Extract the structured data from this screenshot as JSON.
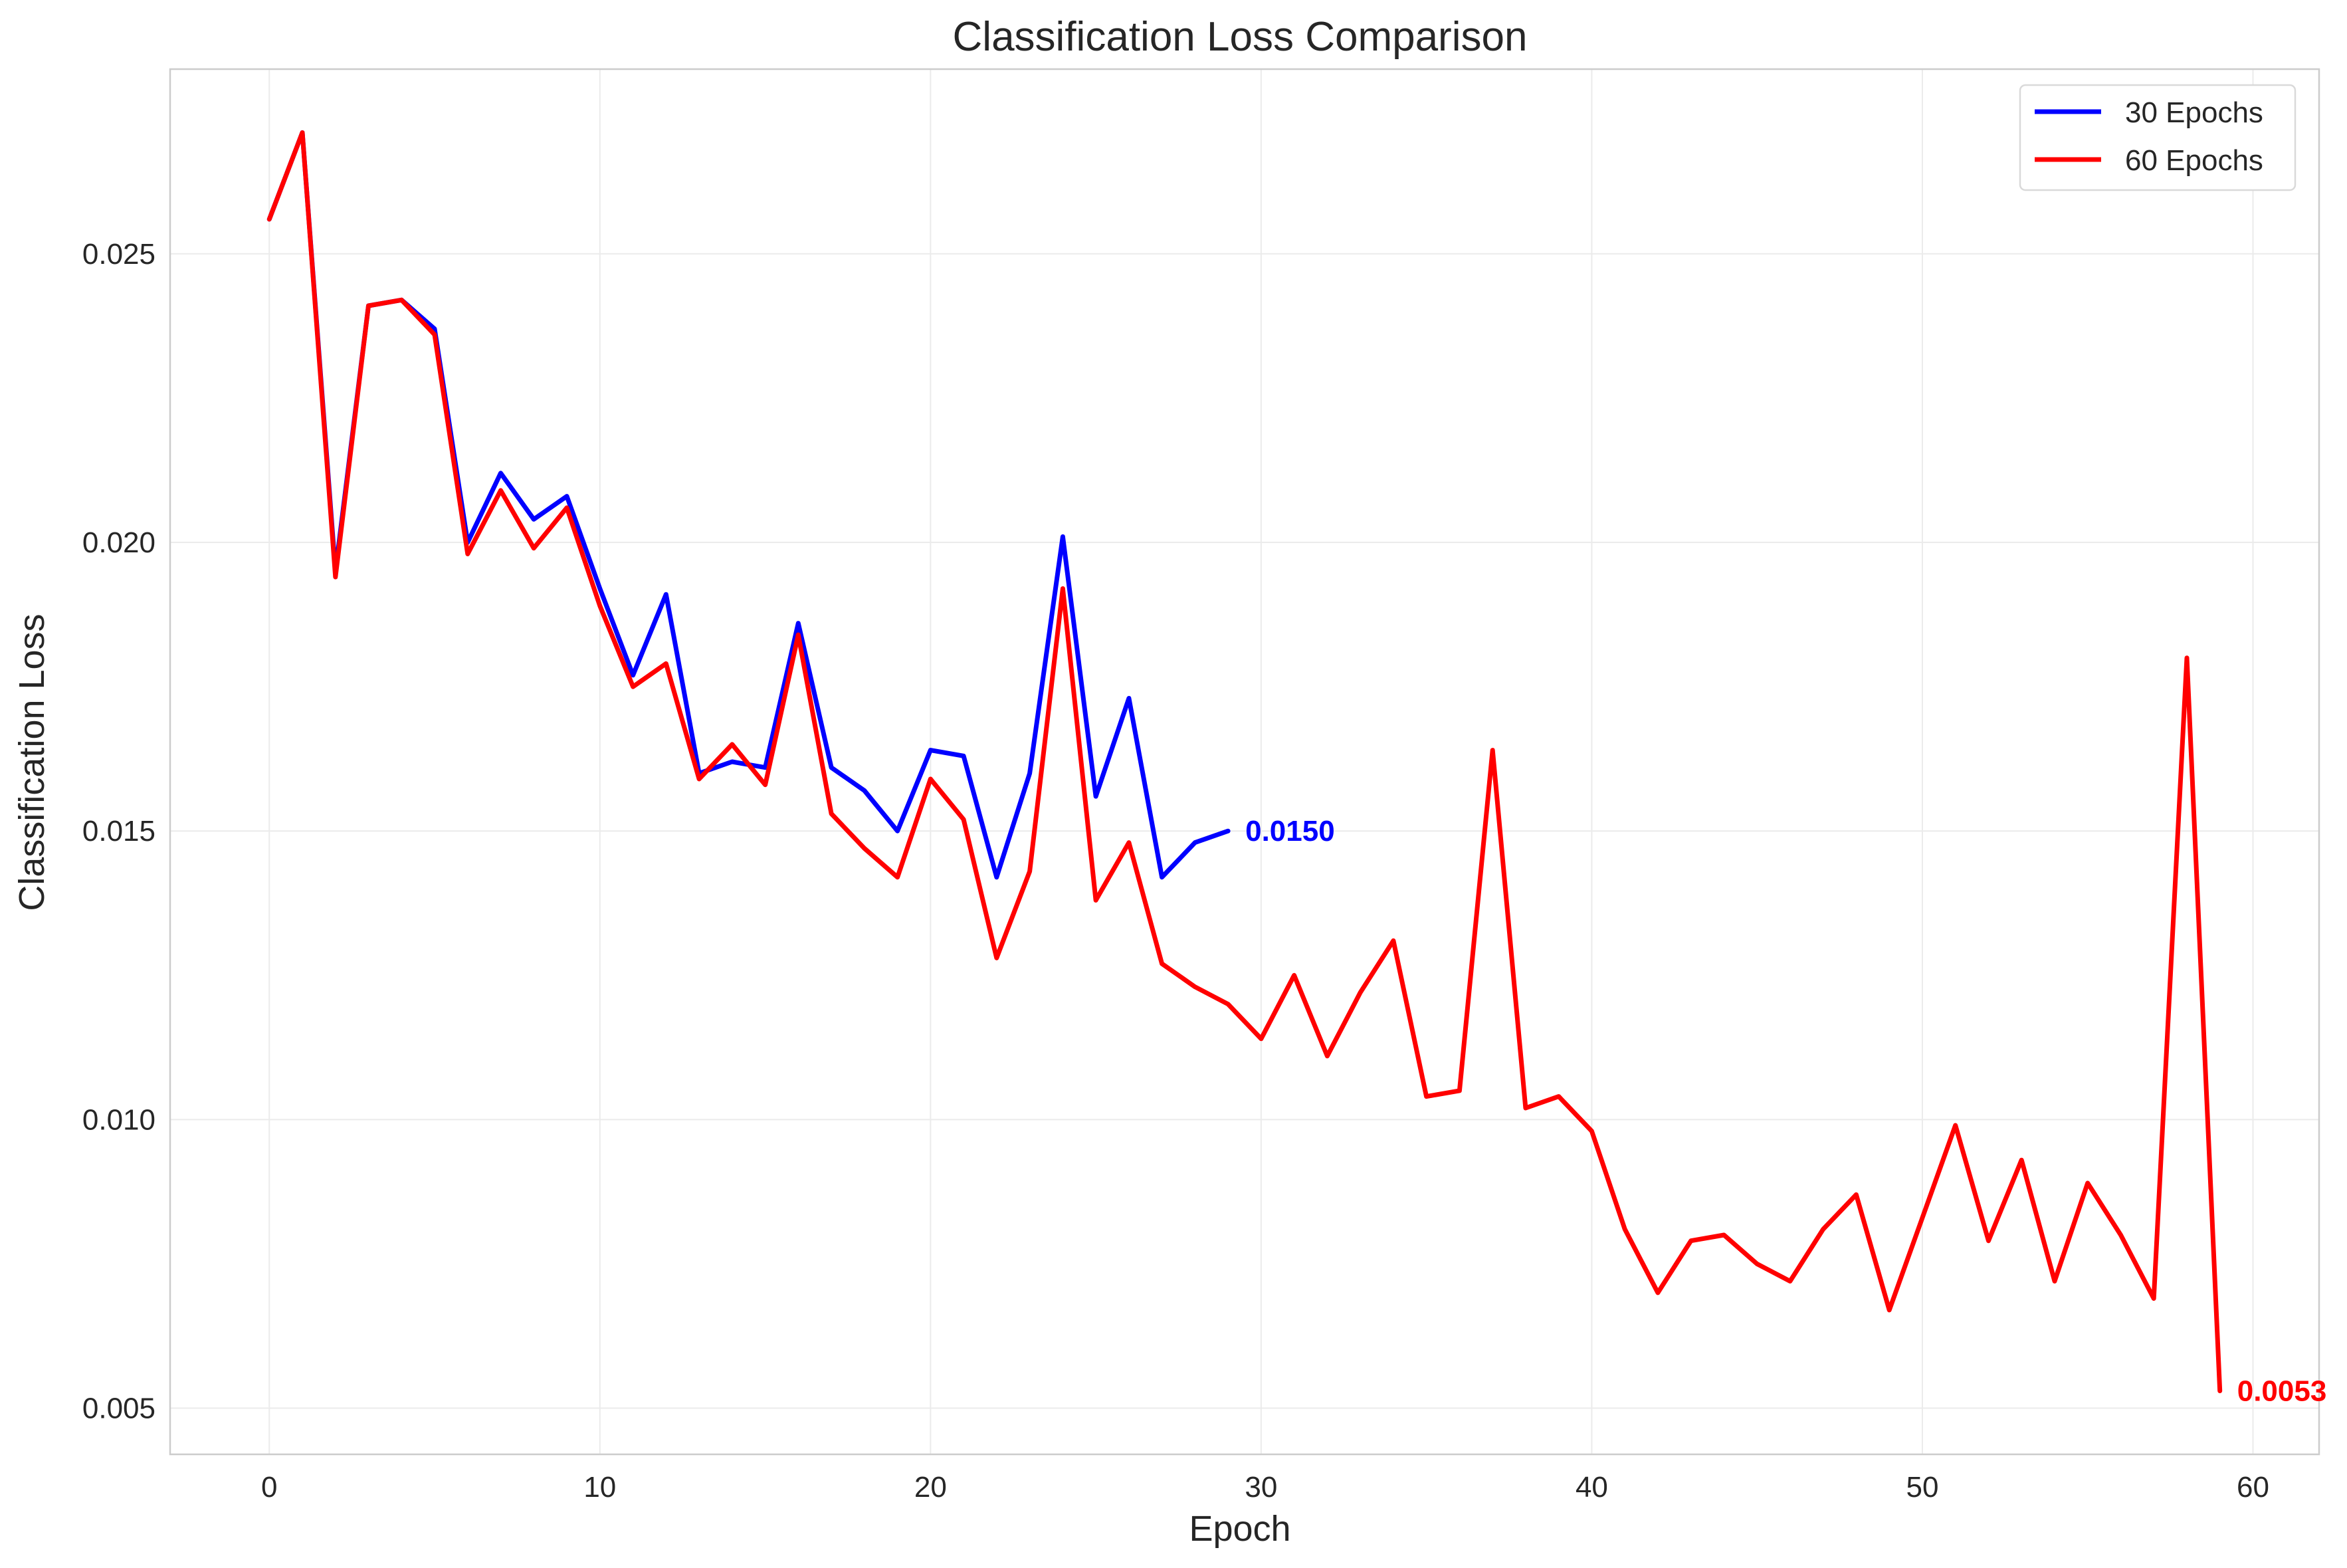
{
  "chart_data": {
    "type": "line",
    "title": "Classification Loss Comparison",
    "xlabel": "Epoch",
    "ylabel": "Classification Loss",
    "xlim": [
      -3,
      62
    ],
    "ylim": [
      0.0042,
      0.0282
    ],
    "x_ticks": [
      0,
      10,
      20,
      30,
      40,
      50,
      60
    ],
    "x_tick_labels": [
      "0",
      "10",
      "20",
      "30",
      "40",
      "50",
      "60"
    ],
    "y_ticks": [
      0.005,
      0.01,
      0.015,
      0.02,
      0.025
    ],
    "y_tick_labels": [
      "0.005",
      "0.010",
      "0.015",
      "0.020",
      "0.025"
    ],
    "grid": true,
    "legend_position": "top-right",
    "series": [
      {
        "name": "30 Epochs",
        "color": "#0000ff",
        "end_label": "0.0150",
        "x": [
          0,
          1,
          2,
          3,
          4,
          5,
          6,
          7,
          8,
          9,
          10,
          11,
          12,
          13,
          14,
          15,
          16,
          17,
          18,
          19,
          20,
          21,
          22,
          23,
          24,
          25,
          26,
          27,
          28,
          29
        ],
        "values": [
          0.0256,
          0.0271,
          0.0195,
          0.0241,
          0.0242,
          0.0237,
          0.02,
          0.0212,
          0.0204,
          0.0208,
          0.0192,
          0.0177,
          0.0191,
          0.016,
          0.0162,
          0.0161,
          0.0186,
          0.0161,
          0.0157,
          0.015,
          0.0164,
          0.0163,
          0.0142,
          0.016,
          0.0201,
          0.0156,
          0.0173,
          0.0142,
          0.0148,
          0.015
        ]
      },
      {
        "name": "60 Epochs",
        "color": "#ff0000",
        "end_label": "0.0053",
        "x": [
          0,
          1,
          2,
          3,
          4,
          5,
          6,
          7,
          8,
          9,
          10,
          11,
          12,
          13,
          14,
          15,
          16,
          17,
          18,
          19,
          20,
          21,
          22,
          23,
          24,
          25,
          26,
          27,
          28,
          29,
          30,
          31,
          32,
          33,
          34,
          35,
          36,
          37,
          38,
          39,
          40,
          41,
          42,
          43,
          44,
          45,
          46,
          47,
          48,
          49,
          50,
          51,
          52,
          53,
          54,
          55,
          56,
          57,
          58,
          59
        ],
        "values": [
          0.0256,
          0.0271,
          0.0194,
          0.0241,
          0.0242,
          0.0236,
          0.0198,
          0.0209,
          0.0199,
          0.0206,
          0.0189,
          0.0175,
          0.0179,
          0.0159,
          0.0165,
          0.0158,
          0.0184,
          0.0153,
          0.0147,
          0.0142,
          0.0159,
          0.0152,
          0.0128,
          0.0143,
          0.0192,
          0.0138,
          0.0148,
          0.0127,
          0.0123,
          0.012,
          0.0114,
          0.0125,
          0.0111,
          0.0122,
          0.0131,
          0.0104,
          0.0105,
          0.0164,
          0.0102,
          0.0104,
          0.0098,
          0.0081,
          0.007,
          0.0079,
          0.008,
          0.0075,
          0.0072,
          0.0081,
          0.0087,
          0.0067,
          0.0083,
          0.0099,
          0.0079,
          0.0093,
          0.0072,
          0.0089,
          0.008,
          0.0069,
          0.018,
          0.0053
        ]
      }
    ]
  }
}
